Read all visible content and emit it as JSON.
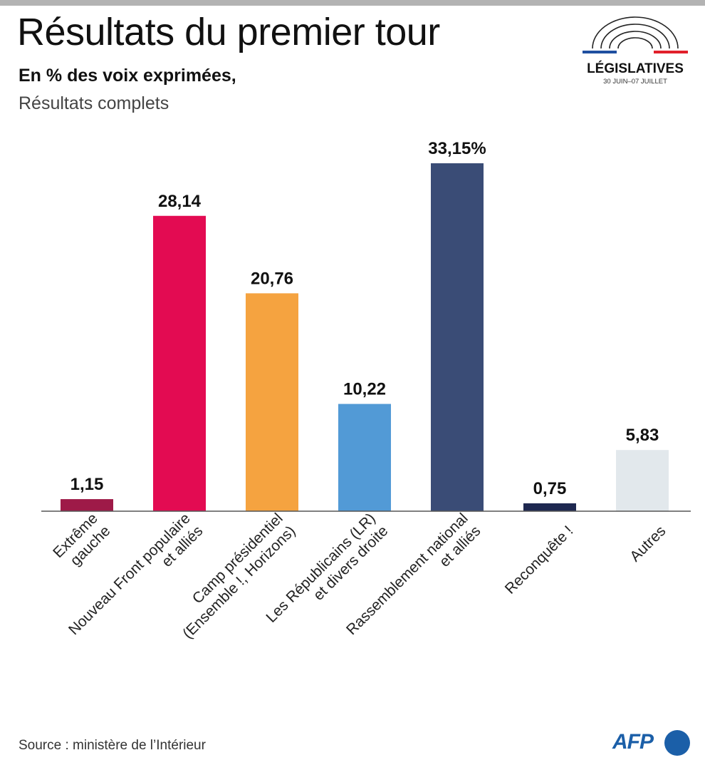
{
  "header": {
    "title": "Résultats du premier tour",
    "subtitle": "En % des voix exprimées,",
    "subtitle2": "Résultats complets"
  },
  "logo": {
    "word": "LÉGISLATIVES",
    "dates": "30 JUIN–07 JUILLET"
  },
  "footer": {
    "source": "Source : ministère de l’Intérieur",
    "agency": "AFP"
  },
  "chart_data": {
    "type": "bar",
    "categories": [
      [
        "Extrême",
        "gauche"
      ],
      [
        "Nouveau Front populaire",
        "et alliés"
      ],
      [
        "Camp présidentiel",
        "(Ensemble !, Horizons)"
      ],
      [
        "Les Républicains (LR)",
        "et divers droite"
      ],
      [
        "Rassemblement national",
        "et alliés"
      ],
      [
        "Reconquête !"
      ],
      [
        "Autres"
      ]
    ],
    "values": [
      1.15,
      28.14,
      20.76,
      10.22,
      33.15,
      0.75,
      5.83
    ],
    "value_labels": [
      "1,15",
      "28,14",
      "20,76",
      "10,22",
      "33,15%",
      "0,75",
      "5,83"
    ],
    "colors": [
      "#9e1a48",
      "#e30b52",
      "#f5a340",
      "#529ad6",
      "#3a4c76",
      "#1e2850",
      "#e2e8ec"
    ],
    "ylim": [
      0,
      33.15
    ],
    "grid": false,
    "legend": "none"
  }
}
